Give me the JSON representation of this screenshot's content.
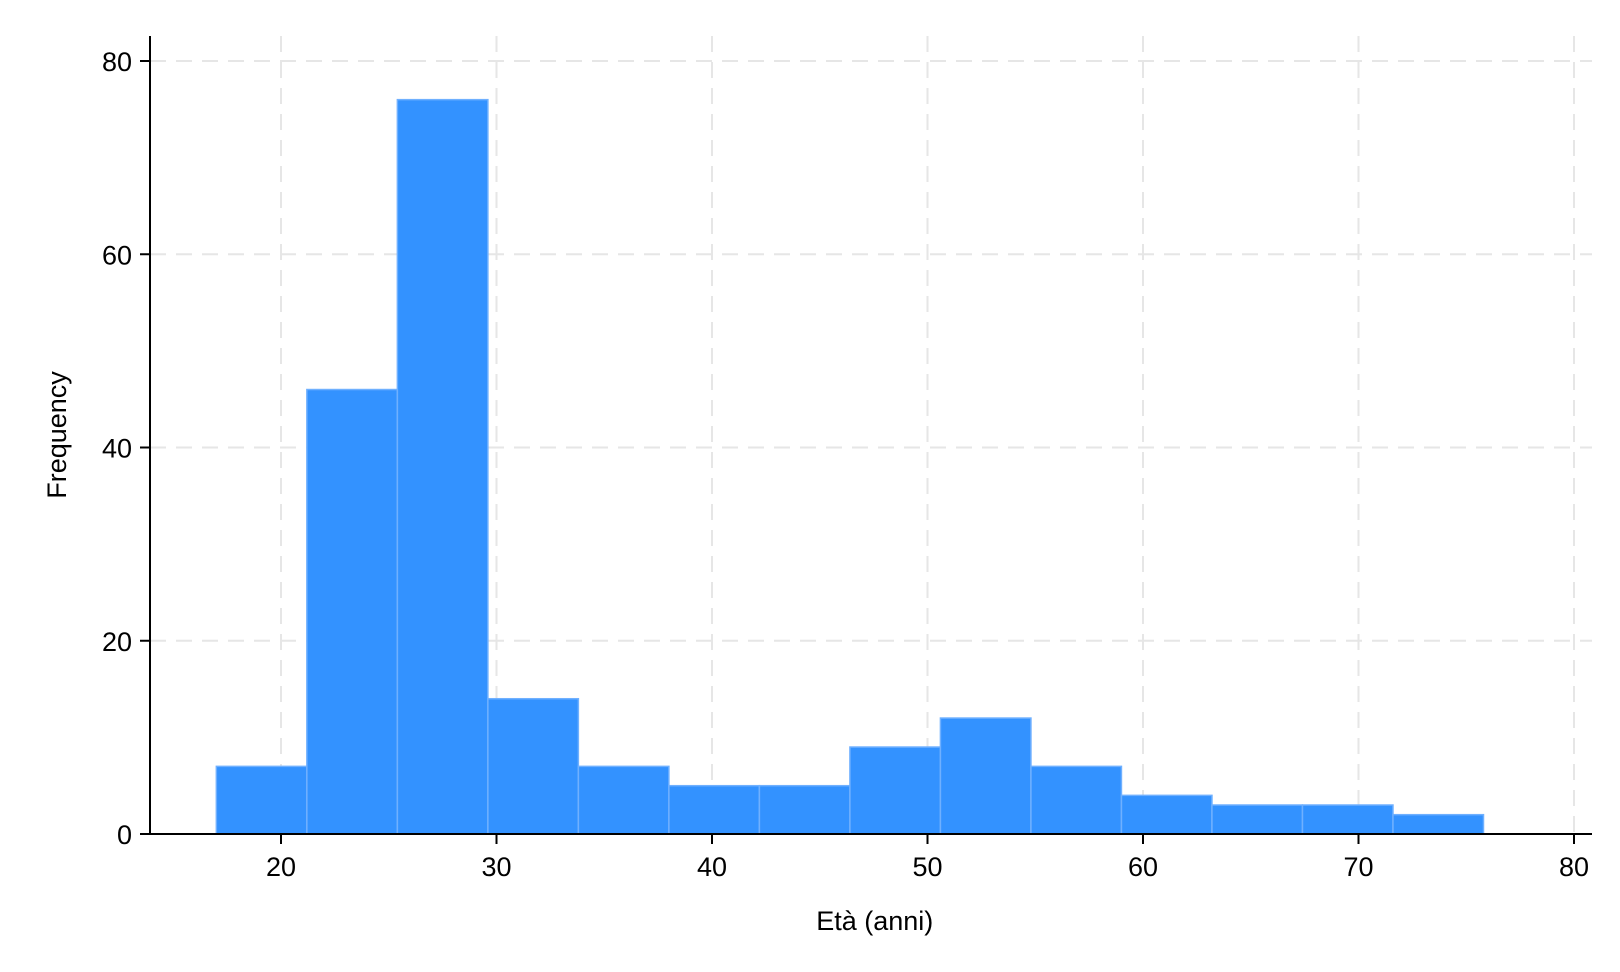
{
  "chart_data": {
    "type": "bar",
    "subtype": "histogram",
    "title": "",
    "xlabel": "Età (anni)",
    "ylabel": "Frequency",
    "xlim": [
      14,
      80
    ],
    "ylim": [
      0,
      80
    ],
    "x_ticks": [
      20,
      30,
      40,
      50,
      60,
      70,
      80
    ],
    "y_ticks": [
      0,
      20,
      40,
      60,
      80
    ],
    "grid": true,
    "bar_color": "#3392ff",
    "bins": [
      {
        "x0": 17.0,
        "x1": 21.2,
        "value": 7
      },
      {
        "x0": 21.2,
        "x1": 25.4,
        "value": 46
      },
      {
        "x0": 25.4,
        "x1": 29.6,
        "value": 76
      },
      {
        "x0": 29.6,
        "x1": 33.8,
        "value": 14
      },
      {
        "x0": 33.8,
        "x1": 38.0,
        "value": 7
      },
      {
        "x0": 38.0,
        "x1": 42.2,
        "value": 5
      },
      {
        "x0": 42.2,
        "x1": 46.4,
        "value": 5
      },
      {
        "x0": 46.4,
        "x1": 50.6,
        "value": 9
      },
      {
        "x0": 50.6,
        "x1": 54.8,
        "value": 12
      },
      {
        "x0": 54.8,
        "x1": 59.0,
        "value": 7
      },
      {
        "x0": 59.0,
        "x1": 63.2,
        "value": 4
      },
      {
        "x0": 63.2,
        "x1": 67.4,
        "value": 3
      },
      {
        "x0": 67.4,
        "x1": 71.6,
        "value": 3
      },
      {
        "x0": 71.6,
        "x1": 75.8,
        "value": 2
      }
    ]
  }
}
